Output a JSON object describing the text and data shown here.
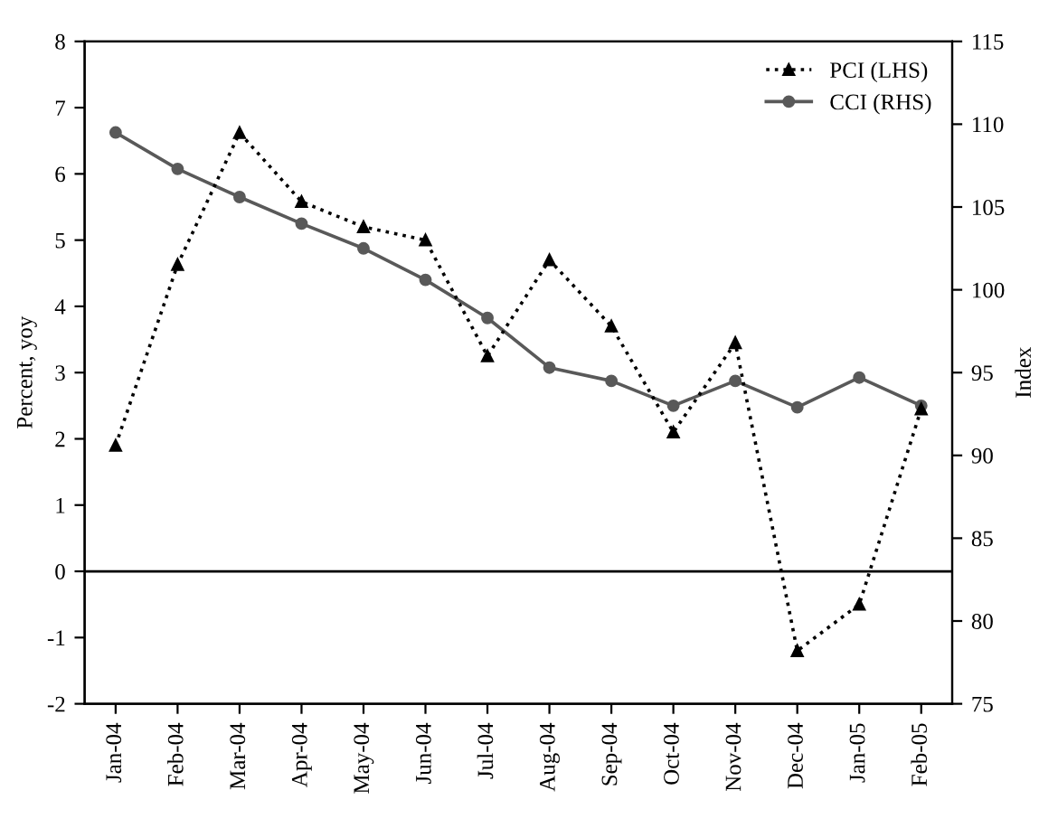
{
  "chart_data": {
    "type": "line",
    "categories": [
      "Jan-04",
      "Feb-04",
      "Mar-04",
      "Apr-04",
      "May-04",
      "Jun-04",
      "Jul-04",
      "Aug-04",
      "Sep-04",
      "Oct-04",
      "Nov-04",
      "Dec-04",
      "Jan-05",
      "Feb-05"
    ],
    "series": [
      {
        "name": "PCI (LHS)",
        "color": "#000000",
        "marker": "triangle",
        "line_style": "dotted",
        "values": [
          1.9,
          4.63,
          6.62,
          5.58,
          5.2,
          5.0,
          3.25,
          4.7,
          3.7,
          2.1,
          3.45,
          -1.2,
          -0.5,
          2.45
        ]
      },
      {
        "name": "CCI (RHS)",
        "color": "#595959",
        "marker": "circle",
        "line_style": "solid",
        "axis": "y2",
        "values": [
          109.5,
          107.3,
          105.6,
          104.0,
          102.5,
          100.6,
          98.3,
          95.3,
          94.5,
          93.0,
          94.5,
          92.9,
          94.7,
          93.0
        ]
      }
    ],
    "ylabel": "Percent, yoy",
    "y2label": "Index",
    "ylim": [
      -2,
      8
    ],
    "yticks": [
      -2,
      -1,
      0,
      1,
      2,
      3,
      4,
      5,
      6,
      7,
      8
    ],
    "y2lim": [
      75,
      115
    ],
    "y2ticks": [
      75,
      80,
      85,
      90,
      95,
      100,
      105,
      110,
      115
    ],
    "ref_lines": [
      {
        "axis": "y",
        "value": 0,
        "color": "#000000"
      }
    ],
    "grid": false,
    "legend": "top right"
  }
}
